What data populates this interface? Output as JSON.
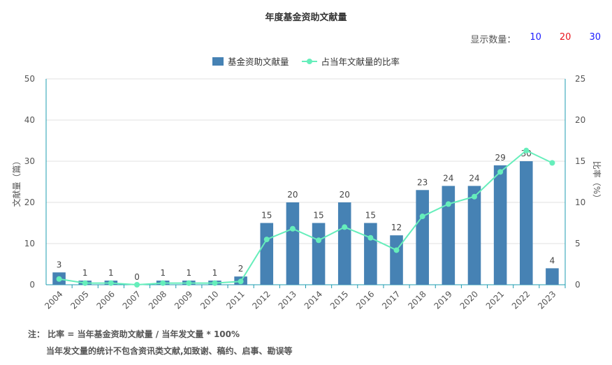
{
  "title": "年度基金资助文献量",
  "display_count": {
    "label": "显示数量：",
    "options": [
      {
        "value": "10",
        "color": "#1a1aff"
      },
      {
        "value": "20",
        "color": "#e8141c"
      },
      {
        "value": "30",
        "color": "#1a1aff"
      }
    ]
  },
  "colors": {
    "bar": "#4682b4",
    "line": "#66eebb",
    "axis": "#1c9cb0",
    "grid": "#e0e0e0"
  },
  "notes": {
    "line1": "注：  比率 = 当年基金资助文献量 / 当年发文量 * 100%",
    "line2": "当年发文量的统计不包含资讯类文献,如致谢、稿约、启事、勘误等"
  },
  "chart_data": {
    "type": "bar",
    "title": "年度基金资助文献量",
    "categories": [
      "2004",
      "2005",
      "2006",
      "2007",
      "2008",
      "2009",
      "2010",
      "2011",
      "2012",
      "2013",
      "2014",
      "2015",
      "2016",
      "2017",
      "2018",
      "2019",
      "2020",
      "2021",
      "2022",
      "2023"
    ],
    "series": [
      {
        "name": "基金资助文献量",
        "type": "bar",
        "axis": "left",
        "values": [
          3,
          1,
          1,
          0,
          1,
          1,
          1,
          2,
          15,
          20,
          15,
          20,
          15,
          12,
          23,
          24,
          24,
          29,
          30,
          4
        ]
      },
      {
        "name": "占当年文献量的比率",
        "type": "line",
        "axis": "right",
        "values": [
          0.7,
          0.2,
          0.2,
          0.0,
          0.2,
          0.2,
          0.2,
          0.4,
          5.5,
          6.8,
          5.4,
          7.0,
          5.7,
          4.2,
          8.3,
          9.8,
          10.7,
          13.7,
          16.3,
          14.8
        ]
      }
    ],
    "ylabel": "文献量（篇）",
    "ylabel_right": "比率（%）",
    "ylim": [
      0,
      50
    ],
    "yticks": [
      0,
      10,
      20,
      30,
      40,
      50
    ],
    "ylim_right": [
      0,
      25
    ],
    "yticks_right": [
      0,
      5,
      10,
      15,
      20,
      25
    ],
    "grid": true,
    "legend": "top-center"
  }
}
